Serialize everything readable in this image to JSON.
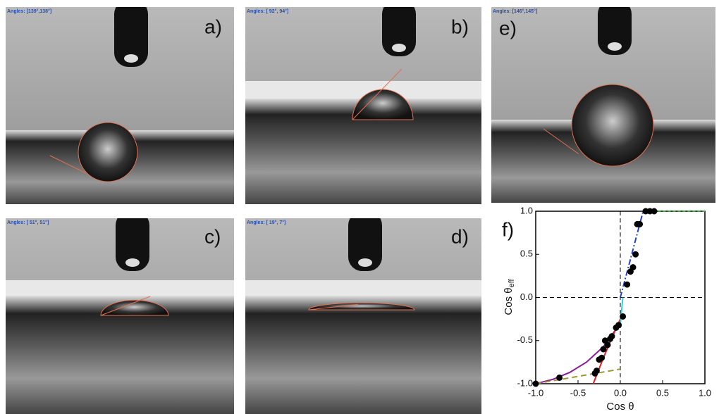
{
  "panels": [
    {
      "label": "a)",
      "angles": "Angles: [139°,138°]"
    },
    {
      "label": "b)",
      "angles": "Angles: [ 92°, 94°]"
    },
    {
      "label": "e)",
      "angles": "Angles: [146°,145°]"
    },
    {
      "label": "c)",
      "angles": "Angles: [ 51°, 51°]"
    },
    {
      "label": "d)",
      "angles": "Angles: [ 19°, 7°]"
    }
  ],
  "chart_data": {
    "type": "scatter",
    "panel_label": "f)",
    "xlabel": "Cos θ",
    "ylabel": "Cos θ",
    "ylabel_subscript": "eff",
    "xlim": [
      -1,
      1
    ],
    "ylim": [
      -1,
      1
    ],
    "xticks": [
      {
        "value": -1,
        "label": "-1.0"
      },
      {
        "value": -0.5,
        "label": "-0.5"
      },
      {
        "value": 0,
        "label": "0.0"
      },
      {
        "value": 0.5,
        "label": "0.5"
      },
      {
        "value": 1,
        "label": "1.0"
      }
    ],
    "yticks": [
      {
        "value": -1,
        "label": "-1.0"
      },
      {
        "value": -0.5,
        "label": "-0.5"
      },
      {
        "value": 0,
        "label": "0.0"
      },
      {
        "value": 0.5,
        "label": "0.5"
      },
      {
        "value": 1,
        "label": "1.0"
      }
    ],
    "points": {
      "color": "#000000",
      "x": [
        -1,
        -0.72,
        -0.3,
        -0.28,
        -0.25,
        -0.22,
        -0.2,
        -0.18,
        -0.15,
        -0.12,
        -0.1,
        -0.05,
        -0.02,
        0.03,
        0.08,
        0.12,
        0.15,
        0.18,
        0.2,
        0.23,
        0.3,
        0.35,
        0.4
      ],
      "y": [
        -1,
        -0.93,
        -0.88,
        -0.85,
        -0.72,
        -0.7,
        -0.6,
        -0.5,
        -0.55,
        -0.48,
        -0.45,
        -0.35,
        -0.32,
        -0.22,
        0.15,
        0.3,
        0.35,
        0.5,
        0.85,
        0.85,
        1,
        1,
        1
      ]
    },
    "lines": [
      {
        "color": "#8b1a9a",
        "dash": "",
        "x": [
          -1,
          -0.8,
          -0.6,
          -0.4,
          -0.2,
          0
        ],
        "y": [
          -1,
          -0.95,
          -0.87,
          -0.75,
          -0.57,
          -0.3
        ]
      },
      {
        "color": "#e02020",
        "dash": "",
        "x": [
          -0.32,
          -0.2,
          -0.1,
          0
        ],
        "y": [
          -1,
          -0.7,
          -0.47,
          -0.25
        ]
      },
      {
        "color": "#9a9a30",
        "dash": "8 5",
        "x": [
          -1,
          0
        ],
        "y": [
          -1,
          -0.83
        ]
      },
      {
        "color": "#30d0e0",
        "dash": "",
        "x": [
          0,
          0.03
        ],
        "y": [
          -0.3,
          0
        ]
      },
      {
        "color": "#2040d0",
        "dash": "8 3 2 3",
        "x": [
          0,
          0.27
        ],
        "y": [
          0,
          1
        ]
      },
      {
        "color": "#30b030",
        "dash": "4 3",
        "x": [
          0.27,
          1
        ],
        "y": [
          1,
          1
        ]
      }
    ]
  }
}
